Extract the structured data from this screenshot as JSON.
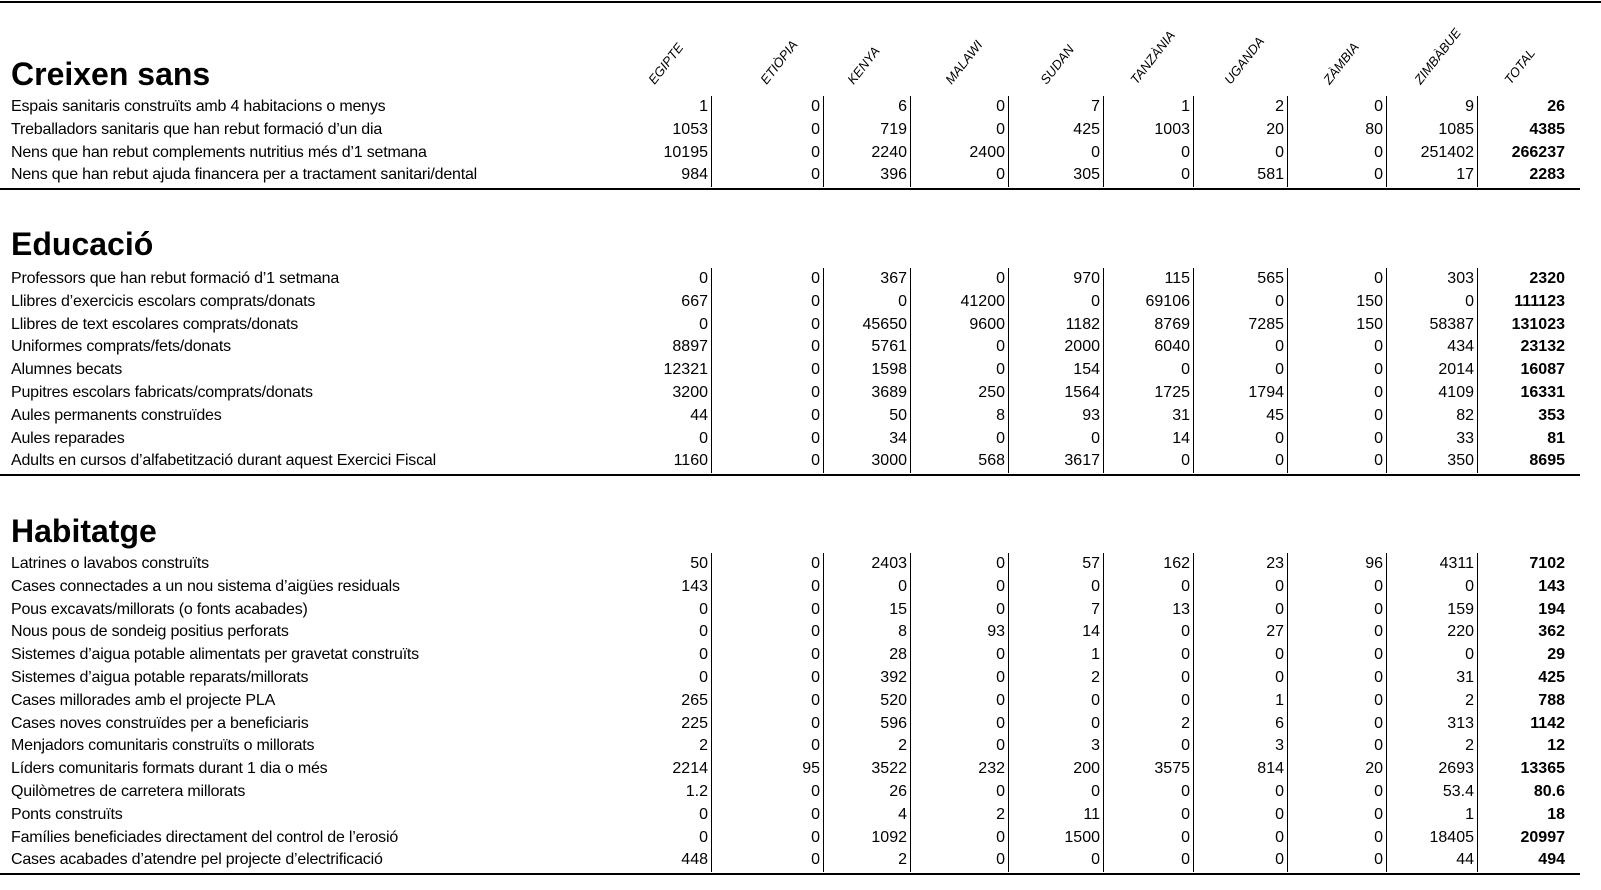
{
  "columns": [
    "EGIPTE",
    "ETIÒPIA",
    "KENYA",
    "MALAWI",
    "SUDAN",
    "TANZÀNIA",
    "UGANDA",
    "ZÀMBIA",
    "ZIMBÀBUE",
    "TOTAL"
  ],
  "sections": [
    {
      "title": "Creixen sans",
      "rows": [
        {
          "label": "Espais sanitaris construïts amb 4 habitacions o menys",
          "values": [
            1,
            0,
            6,
            0,
            7,
            1,
            2,
            0,
            9,
            26
          ]
        },
        {
          "label": "Treballadors sanitaris que han rebut formació d’un dia",
          "values": [
            1053,
            0,
            719,
            0,
            425,
            1003,
            20,
            80,
            1085,
            4385
          ]
        },
        {
          "label": "Nens que han rebut complements nutritius més d’1 setmana",
          "values": [
            10195,
            0,
            2240,
            2400,
            0,
            0,
            0,
            0,
            251402,
            266237
          ]
        },
        {
          "label": "Nens que han rebut ajuda financera per a tractament sanitari/dental",
          "values": [
            984,
            0,
            396,
            0,
            305,
            0,
            581,
            0,
            17,
            2283
          ]
        }
      ]
    },
    {
      "title": "Educació",
      "rows": [
        {
          "label": "Professors que han rebut formació d’1 setmana",
          "values": [
            0,
            0,
            367,
            0,
            970,
            115,
            565,
            0,
            303,
            2320
          ]
        },
        {
          "label": "Llibres d’exercicis escolars comprats/donats",
          "values": [
            667,
            0,
            0,
            41200,
            0,
            69106,
            0,
            150,
            0,
            111123
          ]
        },
        {
          "label": "Llibres de text escolares comprats/donats",
          "values": [
            0,
            0,
            45650,
            9600,
            1182,
            8769,
            7285,
            150,
            58387,
            131023
          ]
        },
        {
          "label": "Uniformes comprats/fets/donats",
          "values": [
            8897,
            0,
            5761,
            0,
            2000,
            6040,
            0,
            0,
            434,
            23132
          ]
        },
        {
          "label": "Alumnes becats",
          "values": [
            12321,
            0,
            1598,
            0,
            154,
            0,
            0,
            0,
            2014,
            16087
          ]
        },
        {
          "label": "Pupitres escolars fabricats/comprats/donats",
          "values": [
            3200,
            0,
            3689,
            250,
            1564,
            1725,
            1794,
            0,
            4109,
            16331
          ]
        },
        {
          "label": "Aules permanents construïdes",
          "values": [
            44,
            0,
            50,
            8,
            93,
            31,
            45,
            0,
            82,
            353
          ]
        },
        {
          "label": "Aules reparades",
          "values": [
            0,
            0,
            34,
            0,
            0,
            14,
            0,
            0,
            33,
            81
          ]
        },
        {
          "label": "Adults en cursos d’alfabetització durant aquest Exercici Fiscal",
          "values": [
            1160,
            0,
            3000,
            568,
            3617,
            0,
            0,
            0,
            350,
            8695
          ]
        }
      ]
    },
    {
      "title": "Habitatge",
      "rows": [
        {
          "label": "Latrines o lavabos construïts",
          "values": [
            50,
            0,
            2403,
            0,
            57,
            162,
            23,
            96,
            4311,
            7102
          ]
        },
        {
          "label": "Cases connectades a un nou sistema d’aigües residuals",
          "values": [
            143,
            0,
            0,
            0,
            0,
            0,
            0,
            0,
            0,
            143
          ]
        },
        {
          "label": "Pous excavats/millorats (o fonts acabades)",
          "values": [
            0,
            0,
            15,
            0,
            7,
            13,
            0,
            0,
            159,
            194
          ]
        },
        {
          "label": "Nous pous de sondeig positius perforats",
          "values": [
            0,
            0,
            8,
            93,
            14,
            0,
            27,
            0,
            220,
            362
          ]
        },
        {
          "label": "Sistemes d’aigua potable alimentats per gravetat construïts",
          "values": [
            0,
            0,
            28,
            0,
            1,
            0,
            0,
            0,
            0,
            29
          ]
        },
        {
          "label": "Sistemes d’aigua potable reparats/millorats",
          "values": [
            0,
            0,
            392,
            0,
            2,
            0,
            0,
            0,
            31,
            425
          ]
        },
        {
          "label": "Cases millorades amb el projecte PLA",
          "values": [
            265,
            0,
            520,
            0,
            0,
            0,
            1,
            0,
            2,
            788
          ]
        },
        {
          "label": "Cases noves construïdes per a beneficiaris",
          "values": [
            225,
            0,
            596,
            0,
            0,
            2,
            6,
            0,
            313,
            1142
          ]
        },
        {
          "label": "Menjadors comunitaris construïts o millorats",
          "values": [
            2,
            0,
            2,
            0,
            3,
            0,
            3,
            0,
            2,
            12
          ]
        },
        {
          "label": "Líders comunitaris formats durant 1 dia o més",
          "values": [
            2214,
            95,
            3522,
            232,
            200,
            3575,
            814,
            20,
            2693,
            13365
          ]
        },
        {
          "label": "Quilòmetres de carretera millorats",
          "values": [
            1.2,
            0,
            26,
            0,
            0,
            0,
            0,
            0,
            53.4,
            80.6
          ]
        },
        {
          "label": "Ponts construïts",
          "values": [
            0,
            0,
            4,
            2,
            11,
            0,
            0,
            0,
            1,
            18
          ]
        },
        {
          "label": "Famílies beneficiades directament del control de l’erosió",
          "values": [
            0,
            0,
            1092,
            0,
            1500,
            0,
            0,
            0,
            18405,
            20997
          ]
        },
        {
          "label": "Cases acabades d’atendre pel projecte d’electrificació",
          "values": [
            448,
            0,
            2,
            0,
            0,
            0,
            0,
            0,
            44,
            494
          ]
        }
      ]
    }
  ]
}
